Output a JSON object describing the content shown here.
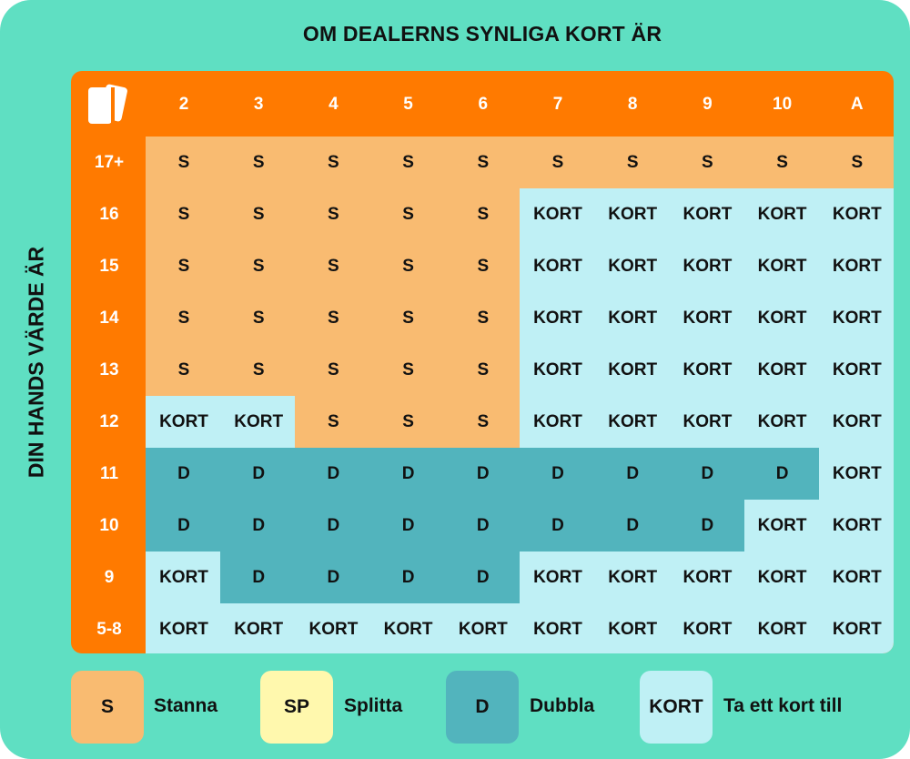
{
  "title": "OM DEALERNS SYNLIGA KORT ÄR",
  "side_title": "DIN HANDS VÄRDE ÄR",
  "corner_icon": "playing-cards-icon",
  "colors": {
    "frame": "#5fdfc2",
    "header": "#ff7a00",
    "stand": "#f9bb71",
    "split": "#fff8ad",
    "double": "#52b4bd",
    "hit": "#bff0f5"
  },
  "dealer_cards": [
    "2",
    "3",
    "4",
    "5",
    "6",
    "7",
    "8",
    "9",
    "10",
    "A"
  ],
  "rows": [
    {
      "hand": "17+",
      "cells": [
        "S",
        "S",
        "S",
        "S",
        "S",
        "S",
        "S",
        "S",
        "S",
        "S"
      ]
    },
    {
      "hand": "16",
      "cells": [
        "S",
        "S",
        "S",
        "S",
        "S",
        "KORT",
        "KORT",
        "KORT",
        "KORT",
        "KORT"
      ]
    },
    {
      "hand": "15",
      "cells": [
        "S",
        "S",
        "S",
        "S",
        "S",
        "KORT",
        "KORT",
        "KORT",
        "KORT",
        "KORT"
      ]
    },
    {
      "hand": "14",
      "cells": [
        "S",
        "S",
        "S",
        "S",
        "S",
        "KORT",
        "KORT",
        "KORT",
        "KORT",
        "KORT"
      ]
    },
    {
      "hand": "13",
      "cells": [
        "S",
        "S",
        "S",
        "S",
        "S",
        "KORT",
        "KORT",
        "KORT",
        "KORT",
        "KORT"
      ]
    },
    {
      "hand": "12",
      "cells": [
        "KORT",
        "KORT",
        "S",
        "S",
        "S",
        "KORT",
        "KORT",
        "KORT",
        "KORT",
        "KORT"
      ]
    },
    {
      "hand": "11",
      "cells": [
        "D",
        "D",
        "D",
        "D",
        "D",
        "D",
        "D",
        "D",
        "D",
        "KORT"
      ]
    },
    {
      "hand": "10",
      "cells": [
        "D",
        "D",
        "D",
        "D",
        "D",
        "D",
        "D",
        "D",
        "KORT",
        "KORT"
      ]
    },
    {
      "hand": "9",
      "cells": [
        "KORT",
        "D",
        "D",
        "D",
        "D",
        "KORT",
        "KORT",
        "KORT",
        "KORT",
        "KORT"
      ]
    },
    {
      "hand": "5-8",
      "cells": [
        "KORT",
        "KORT",
        "KORT",
        "KORT",
        "KORT",
        "KORT",
        "KORT",
        "KORT",
        "KORT",
        "KORT"
      ]
    }
  ],
  "legend": [
    {
      "code": "S",
      "label": "Stanna"
    },
    {
      "code": "SP",
      "label": "Splitta"
    },
    {
      "code": "D",
      "label": "Dubbla"
    },
    {
      "code": "KORT",
      "label": "Ta ett kort till"
    }
  ]
}
